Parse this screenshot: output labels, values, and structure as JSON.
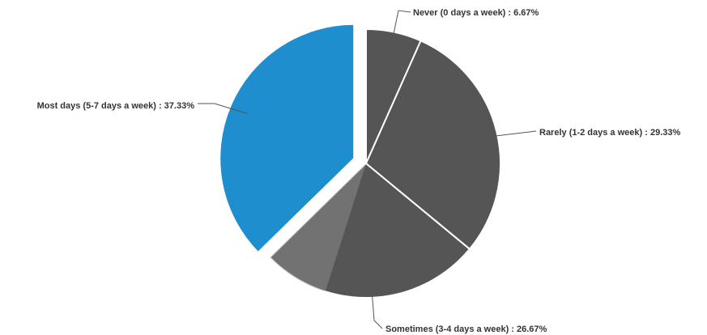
{
  "chart_data": {
    "type": "pie",
    "title": "",
    "slices": [
      {
        "label": "Never (0 days a week) : 6.67%",
        "category": "Never (0 days a week)",
        "value": 6.67,
        "color": "#555555"
      },
      {
        "label": "Rarely (1-2 days a week) : 29.33%",
        "category": "Rarely (1-2 days a week)",
        "value": 29.33,
        "color": "#555555"
      },
      {
        "label": "Sometimes (3-4 days a week) : 26.67%",
        "category": "Sometimes (3-4 days a week)",
        "value": 26.67,
        "color": "#555555"
      },
      {
        "label": "Most days (5-7 days a week) : 37.33%",
        "category": "Most days (5-7 days a week)",
        "value": 37.33,
        "color": "#1e8ecf",
        "exploded": true
      }
    ],
    "start_angle": "12 o'clock",
    "direction": "clockwise",
    "legend": "none",
    "data_labels": "outside with leader lines"
  },
  "colors": {
    "slice_default": "#555555",
    "slice_highlight": "#1e8ecf",
    "label_text": "#333333",
    "background": "#ffffff"
  }
}
